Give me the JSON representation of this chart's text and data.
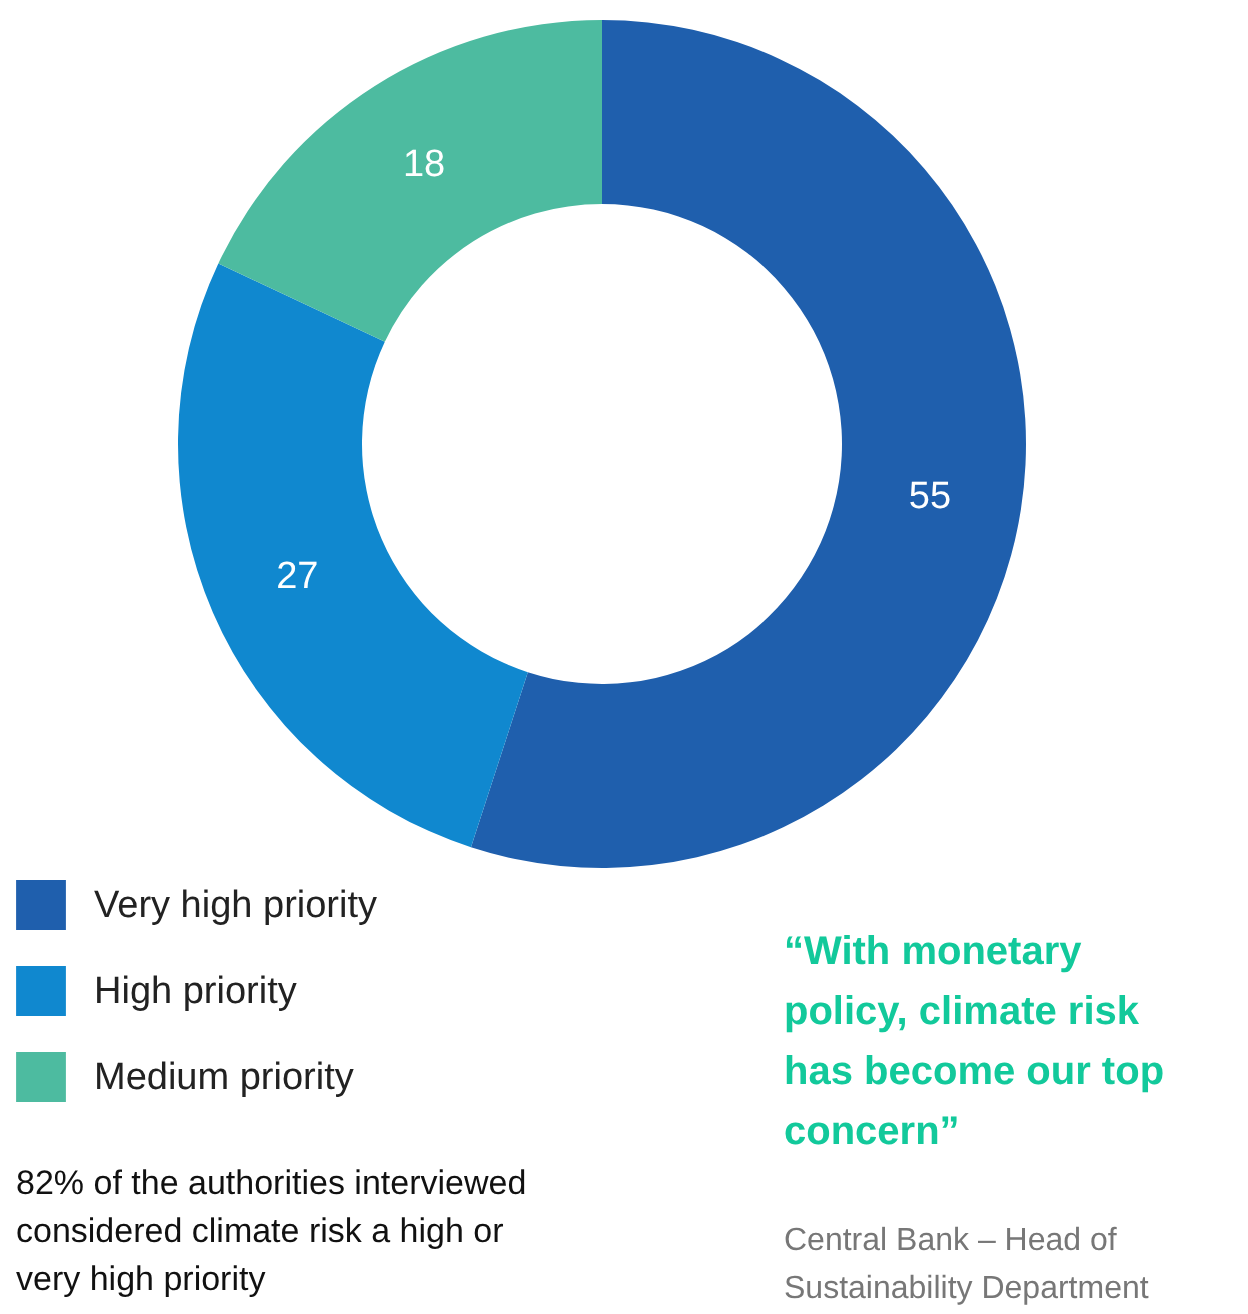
{
  "chart_data": {
    "type": "donut",
    "categories": [
      "Very high priority",
      "High priority",
      "Medium priority"
    ],
    "values": [
      55,
      27,
      18
    ],
    "colors": [
      "#1f5fad",
      "#1088cf",
      "#4dbba0"
    ],
    "data_labels": true,
    "legend": "bottom left",
    "annotations": [
      "82% of the authorities interviewed considered climate risk a high or very high priority",
      "“With monetary policy, climate risk has become our top concern”",
      "Central Bank – Head of Sustainability Department"
    ]
  }
}
